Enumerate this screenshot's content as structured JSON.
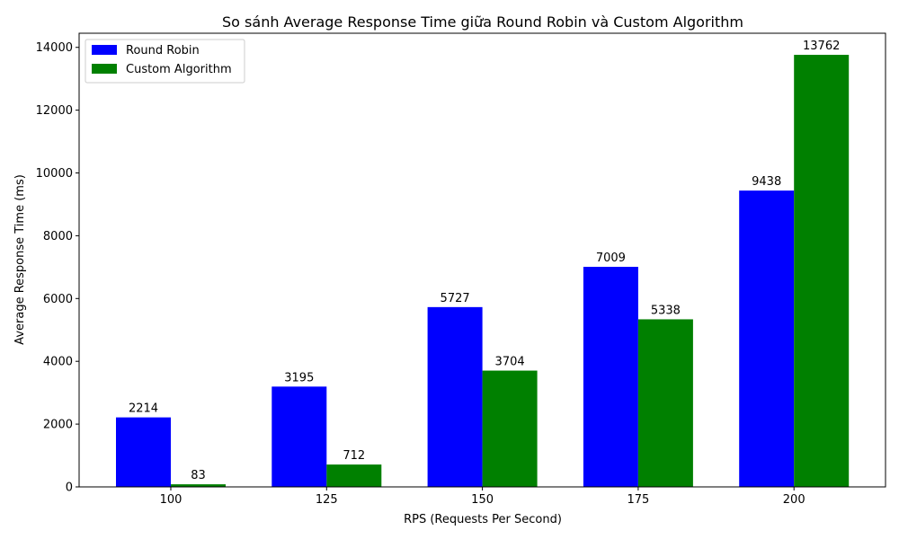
{
  "chart_data": {
    "type": "bar",
    "title": "So sánh Average Response Time giữa Round Robin và Custom Algorithm",
    "xlabel": "RPS (Requests Per Second)",
    "ylabel": "Average Response Time (ms)",
    "categories": [
      "100",
      "125",
      "150",
      "175",
      "200"
    ],
    "series": [
      {
        "name": "Round Robin",
        "color": "#0000ff",
        "values": [
          2214,
          3195,
          5727,
          7009,
          9438
        ]
      },
      {
        "name": "Custom Algorithm",
        "color": "#008000",
        "values": [
          83,
          712,
          3704,
          5338,
          13762
        ]
      }
    ],
    "ylim": [
      0,
      14450
    ],
    "yticks": [
      0,
      2000,
      4000,
      6000,
      8000,
      10000,
      12000,
      14000
    ],
    "legend": "top-left",
    "grid": false
  }
}
